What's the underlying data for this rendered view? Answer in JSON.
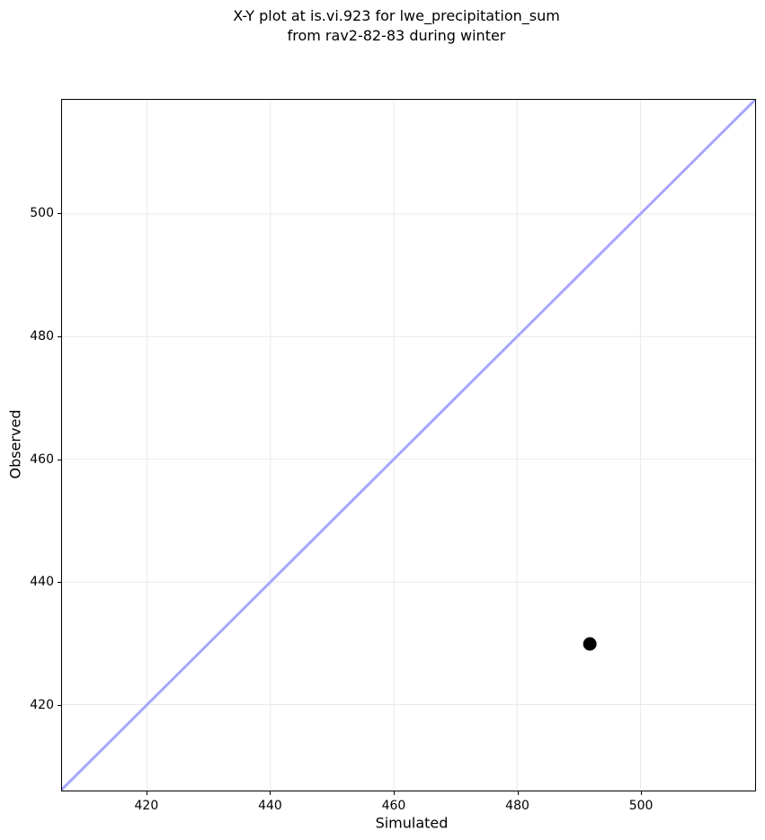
{
  "figure": {
    "title_line1": "X-Y plot at is.vi.923 for lwe_precipitation_sum",
    "title_line2": "from rav2-82-83 during winter"
  },
  "chart_data": {
    "type": "scatter",
    "title": "X-Y plot at is.vi.923 for lwe_precipitation_sum\nfrom rav2-82-83 during winter",
    "xlabel": "Simulated",
    "ylabel": "Observed",
    "xlim": [
      406.2,
      518.6
    ],
    "ylim": [
      406.0,
      518.6
    ],
    "xticks": [
      420,
      440,
      460,
      480,
      500
    ],
    "yticks": [
      420,
      440,
      460,
      480,
      500
    ],
    "grid": true,
    "legend": false,
    "series": [
      {
        "name": "identity-line",
        "kind": "line",
        "points": [
          [
            406.2,
            406.2
          ],
          [
            518.6,
            518.6
          ]
        ],
        "color": "#a6a6ff",
        "stroke_width": 3
      },
      {
        "name": "observations",
        "kind": "scatter",
        "points": [
          [
            491.8,
            429.9
          ]
        ],
        "color": "#000000",
        "marker_radius": 7.5
      }
    ],
    "colors": {
      "grid": "#e9e9e9",
      "spine": "#000000",
      "tick": "#000000",
      "text": "#000000",
      "background": "#ffffff"
    }
  }
}
